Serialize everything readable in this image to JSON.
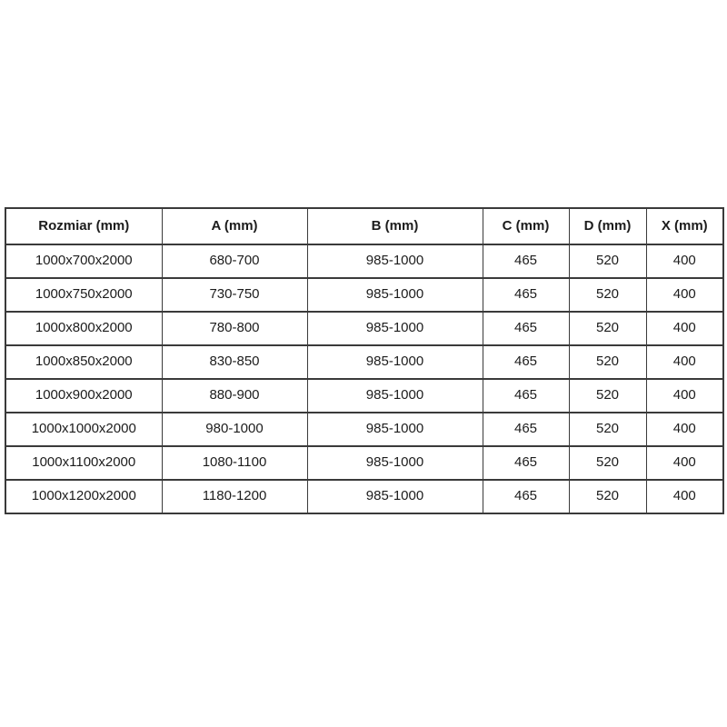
{
  "colors": {
    "border": "#3a3a3a",
    "text": "#1c1c1c",
    "background": "#ffffff"
  },
  "table": {
    "headers": [
      "Rozmiar (mm)",
      "A (mm)",
      "B (mm)",
      "C (mm)",
      "D (mm)",
      "X (mm)"
    ],
    "rows": [
      [
        "1000x700x2000",
        "680-700",
        "985-1000",
        "465",
        "520",
        "400"
      ],
      [
        "1000x750x2000",
        "730-750",
        "985-1000",
        "465",
        "520",
        "400"
      ],
      [
        "1000x800x2000",
        "780-800",
        "985-1000",
        "465",
        "520",
        "400"
      ],
      [
        "1000x850x2000",
        "830-850",
        "985-1000",
        "465",
        "520",
        "400"
      ],
      [
        "1000x900x2000",
        "880-900",
        "985-1000",
        "465",
        "520",
        "400"
      ],
      [
        "1000x1000x2000",
        "980-1000",
        "985-1000",
        "465",
        "520",
        "400"
      ],
      [
        "1000x1100x2000",
        "1080-1100",
        "985-1000",
        "465",
        "520",
        "400"
      ],
      [
        "1000x1200x2000",
        "1180-1200",
        "985-1000",
        "465",
        "520",
        "400"
      ]
    ]
  },
  "chart_data": {
    "type": "table",
    "title": "",
    "columns": [
      "Rozmiar (mm)",
      "A (mm)",
      "B (mm)",
      "C (mm)",
      "D (mm)",
      "X (mm)"
    ],
    "rows": [
      [
        "1000x700x2000",
        "680-700",
        "985-1000",
        "465",
        "520",
        "400"
      ],
      [
        "1000x750x2000",
        "730-750",
        "985-1000",
        "465",
        "520",
        "400"
      ],
      [
        "1000x800x2000",
        "780-800",
        "985-1000",
        "465",
        "520",
        "400"
      ],
      [
        "1000x850x2000",
        "830-850",
        "985-1000",
        "465",
        "520",
        "400"
      ],
      [
        "1000x900x2000",
        "880-900",
        "985-1000",
        "465",
        "520",
        "400"
      ],
      [
        "1000x1000x2000",
        "980-1000",
        "985-1000",
        "465",
        "520",
        "400"
      ],
      [
        "1000x1100x2000",
        "1080-1100",
        "985-1000",
        "465",
        "520",
        "400"
      ],
      [
        "1000x1200x2000",
        "1180-1200",
        "985-1000",
        "465",
        "520",
        "400"
      ]
    ]
  }
}
